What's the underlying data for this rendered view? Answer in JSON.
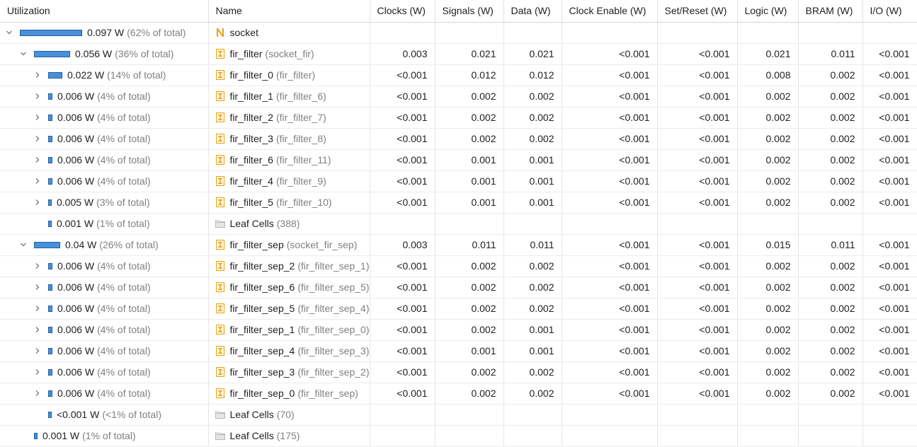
{
  "columns": [
    "Utilization",
    "Name",
    "Clocks (W)",
    "Signals (W)",
    "Data (W)",
    "Clock Enable (W)",
    "Set/Reset (W)",
    "Logic (W)",
    "BRAM (W)",
    "I/O (W)"
  ],
  "colors": {
    "bar_fill": "#4a90d9",
    "bar_border": "#1f5fa8",
    "top_icon": "#e8a317",
    "module_icon": "#e8a317",
    "folder_icon": "#b9b9b9"
  },
  "rows": [
    {
      "level": 0,
      "expander": "expanded",
      "bar": 0.62,
      "value": "0.097 W",
      "pct": "(62% of total)",
      "icon": "top-level-n-icon",
      "name": "socket",
      "sub": "",
      "cells": [
        "",
        "",
        "",
        "",
        "",
        "",
        "",
        ""
      ]
    },
    {
      "level": 1,
      "expander": "expanded",
      "bar": 0.36,
      "value": "0.056 W",
      "pct": "(36% of total)",
      "icon": "module-icon",
      "name": "fir_filter",
      "sub": "(socket_fir)",
      "cells": [
        "0.003",
        "0.021",
        "0.021",
        "<0.001",
        "<0.001",
        "0.021",
        "0.011",
        "<0.001"
      ]
    },
    {
      "level": 2,
      "expander": "collapsed",
      "bar": 0.14,
      "value": "0.022 W",
      "pct": "(14% of total)",
      "icon": "module-icon",
      "name": "fir_filter_0",
      "sub": "(fir_filter)",
      "cells": [
        "<0.001",
        "0.012",
        "0.012",
        "<0.001",
        "<0.001",
        "0.008",
        "0.002",
        "<0.001"
      ]
    },
    {
      "level": 2,
      "expander": "collapsed",
      "bar": 0.04,
      "value": "0.006 W",
      "pct": "(4% of total)",
      "icon": "module-icon",
      "name": "fir_filter_1",
      "sub": "(fir_filter_6)",
      "cells": [
        "<0.001",
        "0.002",
        "0.002",
        "<0.001",
        "<0.001",
        "0.002",
        "0.002",
        "<0.001"
      ]
    },
    {
      "level": 2,
      "expander": "collapsed",
      "bar": 0.04,
      "value": "0.006 W",
      "pct": "(4% of total)",
      "icon": "module-icon",
      "name": "fir_filter_2",
      "sub": "(fir_filter_7)",
      "cells": [
        "<0.001",
        "0.002",
        "0.002",
        "<0.001",
        "<0.001",
        "0.002",
        "0.002",
        "<0.001"
      ]
    },
    {
      "level": 2,
      "expander": "collapsed",
      "bar": 0.04,
      "value": "0.006 W",
      "pct": "(4% of total)",
      "icon": "module-icon",
      "name": "fir_filter_3",
      "sub": "(fir_filter_8)",
      "cells": [
        "<0.001",
        "0.002",
        "0.002",
        "<0.001",
        "<0.001",
        "0.002",
        "0.002",
        "<0.001"
      ]
    },
    {
      "level": 2,
      "expander": "collapsed",
      "bar": 0.04,
      "value": "0.006 W",
      "pct": "(4% of total)",
      "icon": "module-icon",
      "name": "fir_filter_6",
      "sub": "(fir_filter_11)",
      "cells": [
        "<0.001",
        "0.001",
        "0.001",
        "<0.001",
        "<0.001",
        "0.002",
        "0.002",
        "<0.001"
      ]
    },
    {
      "level": 2,
      "expander": "collapsed",
      "bar": 0.04,
      "value": "0.006 W",
      "pct": "(4% of total)",
      "icon": "module-icon",
      "name": "fir_filter_4",
      "sub": "(fir_filter_9)",
      "cells": [
        "<0.001",
        "0.001",
        "0.001",
        "<0.001",
        "<0.001",
        "0.002",
        "0.002",
        "<0.001"
      ]
    },
    {
      "level": 2,
      "expander": "collapsed",
      "bar": 0.03,
      "value": "0.005 W",
      "pct": "(3% of total)",
      "icon": "module-icon",
      "name": "fir_filter_5",
      "sub": "(fir_filter_10)",
      "cells": [
        "<0.001",
        "0.001",
        "0.001",
        "<0.001",
        "<0.001",
        "0.002",
        "0.002",
        "<0.001"
      ]
    },
    {
      "level": 2,
      "expander": "none",
      "bar": 0.01,
      "value": "0.001 W",
      "pct": "(1% of total)",
      "icon": "folder-icon",
      "name": "Leaf Cells",
      "sub": "(388)",
      "cells": [
        "",
        "",
        "",
        "",
        "",
        "",
        "",
        ""
      ]
    },
    {
      "level": 1,
      "expander": "expanded",
      "bar": 0.26,
      "value": "0.04 W",
      "pct": "(26% of total)",
      "icon": "module-icon",
      "name": "fir_filter_sep",
      "sub": "(socket_fir_sep)",
      "cells": [
        "0.003",
        "0.011",
        "0.011",
        "<0.001",
        "<0.001",
        "0.015",
        "0.011",
        "<0.001"
      ]
    },
    {
      "level": 2,
      "expander": "collapsed",
      "bar": 0.04,
      "value": "0.006 W",
      "pct": "(4% of total)",
      "icon": "module-icon",
      "name": "fir_filter_sep_2",
      "sub": "(fir_filter_sep_1)",
      "cells": [
        "<0.001",
        "0.002",
        "0.002",
        "<0.001",
        "<0.001",
        "0.002",
        "0.002",
        "<0.001"
      ]
    },
    {
      "level": 2,
      "expander": "collapsed",
      "bar": 0.04,
      "value": "0.006 W",
      "pct": "(4% of total)",
      "icon": "module-icon",
      "name": "fir_filter_sep_6",
      "sub": "(fir_filter_sep_5)",
      "cells": [
        "<0.001",
        "0.002",
        "0.002",
        "<0.001",
        "<0.001",
        "0.002",
        "0.002",
        "<0.001"
      ]
    },
    {
      "level": 2,
      "expander": "collapsed",
      "bar": 0.04,
      "value": "0.006 W",
      "pct": "(4% of total)",
      "icon": "module-icon",
      "name": "fir_filter_sep_5",
      "sub": "(fir_filter_sep_4)",
      "cells": [
        "<0.001",
        "0.002",
        "0.002",
        "<0.001",
        "<0.001",
        "0.002",
        "0.002",
        "<0.001"
      ]
    },
    {
      "level": 2,
      "expander": "collapsed",
      "bar": 0.04,
      "value": "0.006 W",
      "pct": "(4% of total)",
      "icon": "module-icon",
      "name": "fir_filter_sep_1",
      "sub": "(fir_filter_sep_0)",
      "cells": [
        "<0.001",
        "0.002",
        "0.001",
        "<0.001",
        "<0.001",
        "0.002",
        "0.002",
        "<0.001"
      ]
    },
    {
      "level": 2,
      "expander": "collapsed",
      "bar": 0.04,
      "value": "0.006 W",
      "pct": "(4% of total)",
      "icon": "module-icon",
      "name": "fir_filter_sep_4",
      "sub": "(fir_filter_sep_3)",
      "cells": [
        "<0.001",
        "0.001",
        "0.001",
        "<0.001",
        "<0.001",
        "0.002",
        "0.002",
        "<0.001"
      ]
    },
    {
      "level": 2,
      "expander": "collapsed",
      "bar": 0.04,
      "value": "0.006 W",
      "pct": "(4% of total)",
      "icon": "module-icon",
      "name": "fir_filter_sep_3",
      "sub": "(fir_filter_sep_2)",
      "cells": [
        "<0.001",
        "0.002",
        "0.002",
        "<0.001",
        "<0.001",
        "0.002",
        "0.002",
        "<0.001"
      ]
    },
    {
      "level": 2,
      "expander": "collapsed",
      "bar": 0.04,
      "value": "0.006 W",
      "pct": "(4% of total)",
      "icon": "module-icon",
      "name": "fir_filter_sep_0",
      "sub": "(fir_filter_sep)",
      "cells": [
        "<0.001",
        "0.002",
        "0.002",
        "<0.001",
        "<0.001",
        "0.002",
        "0.002",
        "<0.001"
      ]
    },
    {
      "level": 2,
      "expander": "none",
      "bar": 0.005,
      "value": "<0.001 W",
      "pct": "(<1% of total)",
      "icon": "folder-icon",
      "name": "Leaf Cells",
      "sub": "(70)",
      "cells": [
        "",
        "",
        "",
        "",
        "",
        "",
        "",
        ""
      ]
    },
    {
      "level": 1,
      "expander": "none",
      "bar": 0.01,
      "value": "0.001 W",
      "pct": "(1% of total)",
      "icon": "folder-icon",
      "name": "Leaf Cells",
      "sub": "(175)",
      "cells": [
        "",
        "",
        "",
        "",
        "",
        "",
        "",
        ""
      ]
    }
  ]
}
